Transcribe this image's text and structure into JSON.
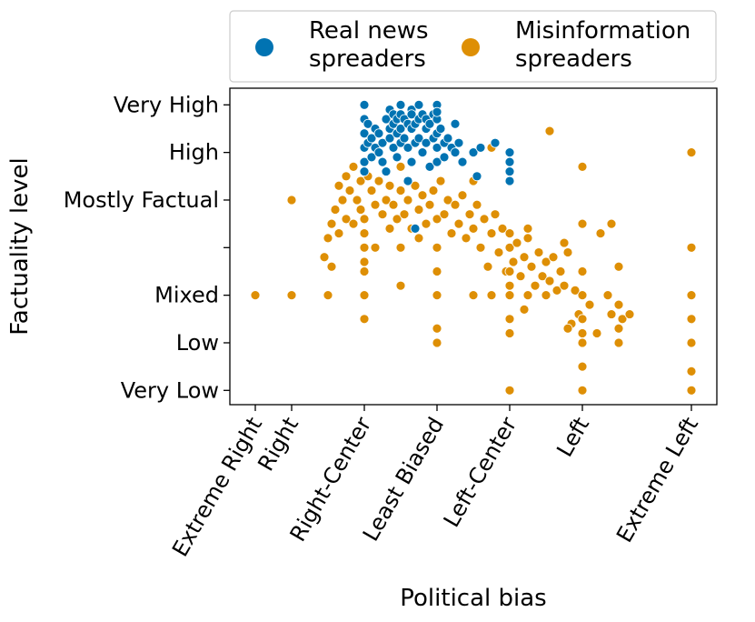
{
  "chart_data": {
    "type": "scatter",
    "xlabel": "Political bias",
    "ylabel": "Factuality level",
    "x_categories": [
      "Extreme Right",
      "Right",
      "Right-Center",
      "Least Biased",
      "Left-Center",
      "Left",
      "Extreme Left"
    ],
    "x_category_positions": [
      -3,
      -2,
      0,
      2,
      4,
      6,
      9
    ],
    "xlim": [
      -3.7,
      9.7
    ],
    "y_categories": [
      "Very Low",
      "Low",
      "Mixed",
      "",
      "Mostly Factual",
      "High",
      "Very High"
    ],
    "y_category_positions": [
      0,
      1,
      2,
      3,
      4,
      5,
      6
    ],
    "ylim": [
      -0.3,
      6.35
    ],
    "legend_position": "top, outside plot",
    "series": [
      {
        "name": "Real news spreaders",
        "legend_label_lines": [
          "Real news",
          "spreaders"
        ],
        "color": "#0173b2",
        "points": [
          [
            0.0,
            6.0
          ],
          [
            0.0,
            5.7
          ],
          [
            0.0,
            5.4
          ],
          [
            0.0,
            5.1
          ],
          [
            0.0,
            4.8
          ],
          [
            0.0,
            4.6
          ],
          [
            0.1,
            5.6
          ],
          [
            0.1,
            5.2
          ],
          [
            0.2,
            5.3
          ],
          [
            0.2,
            4.9
          ],
          [
            0.3,
            5.5
          ],
          [
            0.3,
            5.1
          ],
          [
            0.4,
            5.0
          ],
          [
            0.4,
            5.4
          ],
          [
            0.5,
            5.2
          ],
          [
            0.5,
            4.8
          ],
          [
            0.6,
            4.6
          ],
          [
            0.6,
            5.7
          ],
          [
            0.7,
            5.9
          ],
          [
            0.7,
            5.5
          ],
          [
            0.7,
            5.3
          ],
          [
            0.8,
            5.8
          ],
          [
            0.8,
            5.6
          ],
          [
            0.8,
            5.1
          ],
          [
            0.9,
            5.4
          ],
          [
            0.9,
            5.7
          ],
          [
            0.9,
            4.9
          ],
          [
            1.0,
            6.0
          ],
          [
            1.0,
            5.5
          ],
          [
            1.0,
            5.2
          ],
          [
            1.0,
            5.8
          ],
          [
            1.1,
            5.7
          ],
          [
            1.1,
            5.3
          ],
          [
            1.2,
            5.6
          ],
          [
            1.2,
            5.1
          ],
          [
            1.2,
            4.4
          ],
          [
            1.3,
            5.9
          ],
          [
            1.3,
            5.5
          ],
          [
            1.3,
            5.8
          ],
          [
            1.3,
            4.8
          ],
          [
            1.4,
            5.6
          ],
          [
            1.4,
            5.2
          ],
          [
            1.4,
            3.4
          ],
          [
            1.5,
            6.0
          ],
          [
            1.5,
            5.7
          ],
          [
            1.5,
            5.3
          ],
          [
            1.6,
            5.8
          ],
          [
            1.6,
            5.0
          ],
          [
            1.7,
            5.5
          ],
          [
            1.7,
            5.7
          ],
          [
            1.7,
            5.2
          ],
          [
            1.8,
            5.6
          ],
          [
            1.8,
            4.7
          ],
          [
            1.9,
            5.8
          ],
          [
            1.9,
            5.3
          ],
          [
            2.0,
            6.0
          ],
          [
            2.0,
            5.7
          ],
          [
            2.0,
            5.4
          ],
          [
            2.0,
            5.1
          ],
          [
            2.0,
            4.8
          ],
          [
            2.0,
            5.85
          ],
          [
            2.1,
            5.5
          ],
          [
            2.2,
            5.2
          ],
          [
            2.2,
            4.9
          ],
          [
            2.3,
            5.3
          ],
          [
            2.4,
            5.1
          ],
          [
            2.5,
            5.6
          ],
          [
            2.5,
            5.0
          ],
          [
            2.6,
            5.2
          ],
          [
            2.7,
            4.8
          ],
          [
            3.0,
            5.0
          ],
          [
            3.1,
            4.5
          ],
          [
            3.2,
            5.1
          ],
          [
            3.6,
            5.2
          ],
          [
            4.0,
            5.0
          ],
          [
            4.0,
            4.8
          ],
          [
            4.0,
            4.6
          ],
          [
            4.0,
            4.4
          ]
        ]
      },
      {
        "name": "Misinformation spreaders",
        "legend_label_lines": [
          "Misinformation",
          "spreaders"
        ],
        "color": "#de8f05",
        "points": [
          [
            -3.0,
            2.0
          ],
          [
            -2.0,
            2.0
          ],
          [
            -2.0,
            4.0
          ],
          [
            -1.0,
            2.0
          ],
          [
            -1.1,
            2.8
          ],
          [
            -1.0,
            3.2
          ],
          [
            -0.9,
            2.6
          ],
          [
            -0.9,
            3.5
          ],
          [
            -0.8,
            3.8
          ],
          [
            -0.7,
            4.3
          ],
          [
            -0.7,
            3.3
          ],
          [
            -0.6,
            4.0
          ],
          [
            -0.5,
            4.5
          ],
          [
            -0.5,
            3.6
          ],
          [
            -0.4,
            4.2
          ],
          [
            -0.3,
            4.7
          ],
          [
            -0.3,
            3.5
          ],
          [
            -0.2,
            4.0
          ],
          [
            -0.1,
            4.4
          ],
          [
            -0.1,
            3.8
          ],
          [
            0.0,
            3.0
          ],
          [
            0.0,
            2.5
          ],
          [
            0.0,
            2.0
          ],
          [
            0.0,
            1.5
          ],
          [
            0.0,
            3.3
          ],
          [
            0.0,
            2.7
          ],
          [
            0.0,
            3.6
          ],
          [
            0.1,
            4.5
          ],
          [
            0.2,
            4.2
          ],
          [
            0.3,
            3.9
          ],
          [
            0.3,
            3.0
          ],
          [
            0.4,
            4.4
          ],
          [
            0.5,
            3.7
          ],
          [
            0.6,
            4.0
          ],
          [
            0.7,
            4.3
          ],
          [
            0.7,
            3.4
          ],
          [
            0.8,
            3.9
          ],
          [
            0.9,
            3.6
          ],
          [
            1.0,
            4.2
          ],
          [
            1.0,
            3.0
          ],
          [
            1.0,
            2.2
          ],
          [
            1.0,
            4.7
          ],
          [
            1.1,
            3.7
          ],
          [
            1.2,
            4.0
          ],
          [
            1.3,
            3.4
          ],
          [
            1.4,
            4.3
          ],
          [
            1.5,
            3.8
          ],
          [
            1.5,
            3.2
          ],
          [
            1.6,
            4.1
          ],
          [
            1.7,
            3.5
          ],
          [
            1.8,
            3.9
          ],
          [
            1.9,
            4.2
          ],
          [
            2.0,
            3.0
          ],
          [
            2.0,
            2.5
          ],
          [
            2.0,
            2.0
          ],
          [
            2.0,
            1.3
          ],
          [
            2.0,
            1.0
          ],
          [
            2.0,
            3.6
          ],
          [
            2.1,
            4.4
          ],
          [
            2.2,
            3.7
          ],
          [
            2.3,
            4.0
          ],
          [
            2.4,
            3.3
          ],
          [
            2.5,
            3.9
          ],
          [
            2.6,
            3.5
          ],
          [
            2.7,
            4.1
          ],
          [
            2.8,
            3.2
          ],
          [
            2.9,
            3.7
          ],
          [
            3.0,
            3.4
          ],
          [
            3.0,
            2.0
          ],
          [
            3.1,
            3.9
          ],
          [
            3.2,
            3.0
          ],
          [
            3.3,
            3.6
          ],
          [
            3.4,
            2.6
          ],
          [
            3.5,
            3.3
          ],
          [
            3.5,
            2.0
          ],
          [
            3.6,
            3.7
          ],
          [
            3.7,
            2.9
          ],
          [
            3.8,
            3.4
          ],
          [
            3.9,
            2.5
          ],
          [
            4.0,
            3.0
          ],
          [
            4.0,
            2.5
          ],
          [
            4.0,
            2.0
          ],
          [
            4.0,
            1.5
          ],
          [
            4.0,
            1.2
          ],
          [
            4.0,
            0.0
          ],
          [
            4.0,
            3.3
          ],
          [
            4.0,
            2.2
          ],
          [
            4.1,
            2.7
          ],
          [
            4.2,
            3.1
          ],
          [
            4.3,
            2.4
          ],
          [
            4.4,
            2.8
          ],
          [
            4.5,
            2.0
          ],
          [
            4.5,
            3.2
          ],
          [
            4.6,
            2.6
          ],
          [
            4.7,
            2.2
          ],
          [
            4.8,
            2.9
          ],
          [
            4.9,
            2.4
          ],
          [
            5.0,
            2.0
          ],
          [
            5.0,
            2.7
          ],
          [
            5.1,
            2.3
          ],
          [
            5.2,
            2.8
          ],
          [
            5.3,
            2.1
          ],
          [
            5.4,
            2.5
          ],
          [
            5.5,
            2.2
          ],
          [
            5.6,
            2.9
          ],
          [
            5.7,
            1.4
          ],
          [
            5.8,
            2.1
          ],
          [
            5.9,
            1.6
          ],
          [
            6.0,
            3.5
          ],
          [
            6.0,
            2.5
          ],
          [
            6.0,
            2.0
          ],
          [
            6.0,
            1.5
          ],
          [
            6.0,
            1.2
          ],
          [
            6.0,
            1.0
          ],
          [
            6.0,
            0.5
          ],
          [
            6.0,
            0.0
          ],
          [
            6.0,
            4.7
          ],
          [
            6.2,
            1.8
          ],
          [
            6.4,
            1.2
          ],
          [
            6.5,
            3.3
          ],
          [
            6.7,
            2.0
          ],
          [
            6.8,
            1.6
          ],
          [
            7.0,
            2.6
          ],
          [
            7.0,
            1.8
          ],
          [
            7.0,
            1.3
          ],
          [
            7.0,
            1.0
          ],
          [
            7.1,
            1.5
          ],
          [
            7.3,
            1.6
          ],
          [
            9.0,
            5.0
          ],
          [
            9.0,
            3.0
          ],
          [
            9.0,
            2.0
          ],
          [
            9.0,
            1.5
          ],
          [
            9.0,
            1.0
          ],
          [
            9.0,
            0.4
          ],
          [
            9.0,
            0.0
          ],
          [
            3.0,
            4.4
          ],
          [
            3.5,
            5.1
          ],
          [
            4.5,
            3.4
          ],
          [
            5.5,
            3.1
          ],
          [
            6.8,
            3.5
          ],
          [
            5.1,
            5.45
          ],
          [
            5.6,
            1.3
          ],
          [
            4.4,
            1.7
          ]
        ]
      }
    ]
  }
}
